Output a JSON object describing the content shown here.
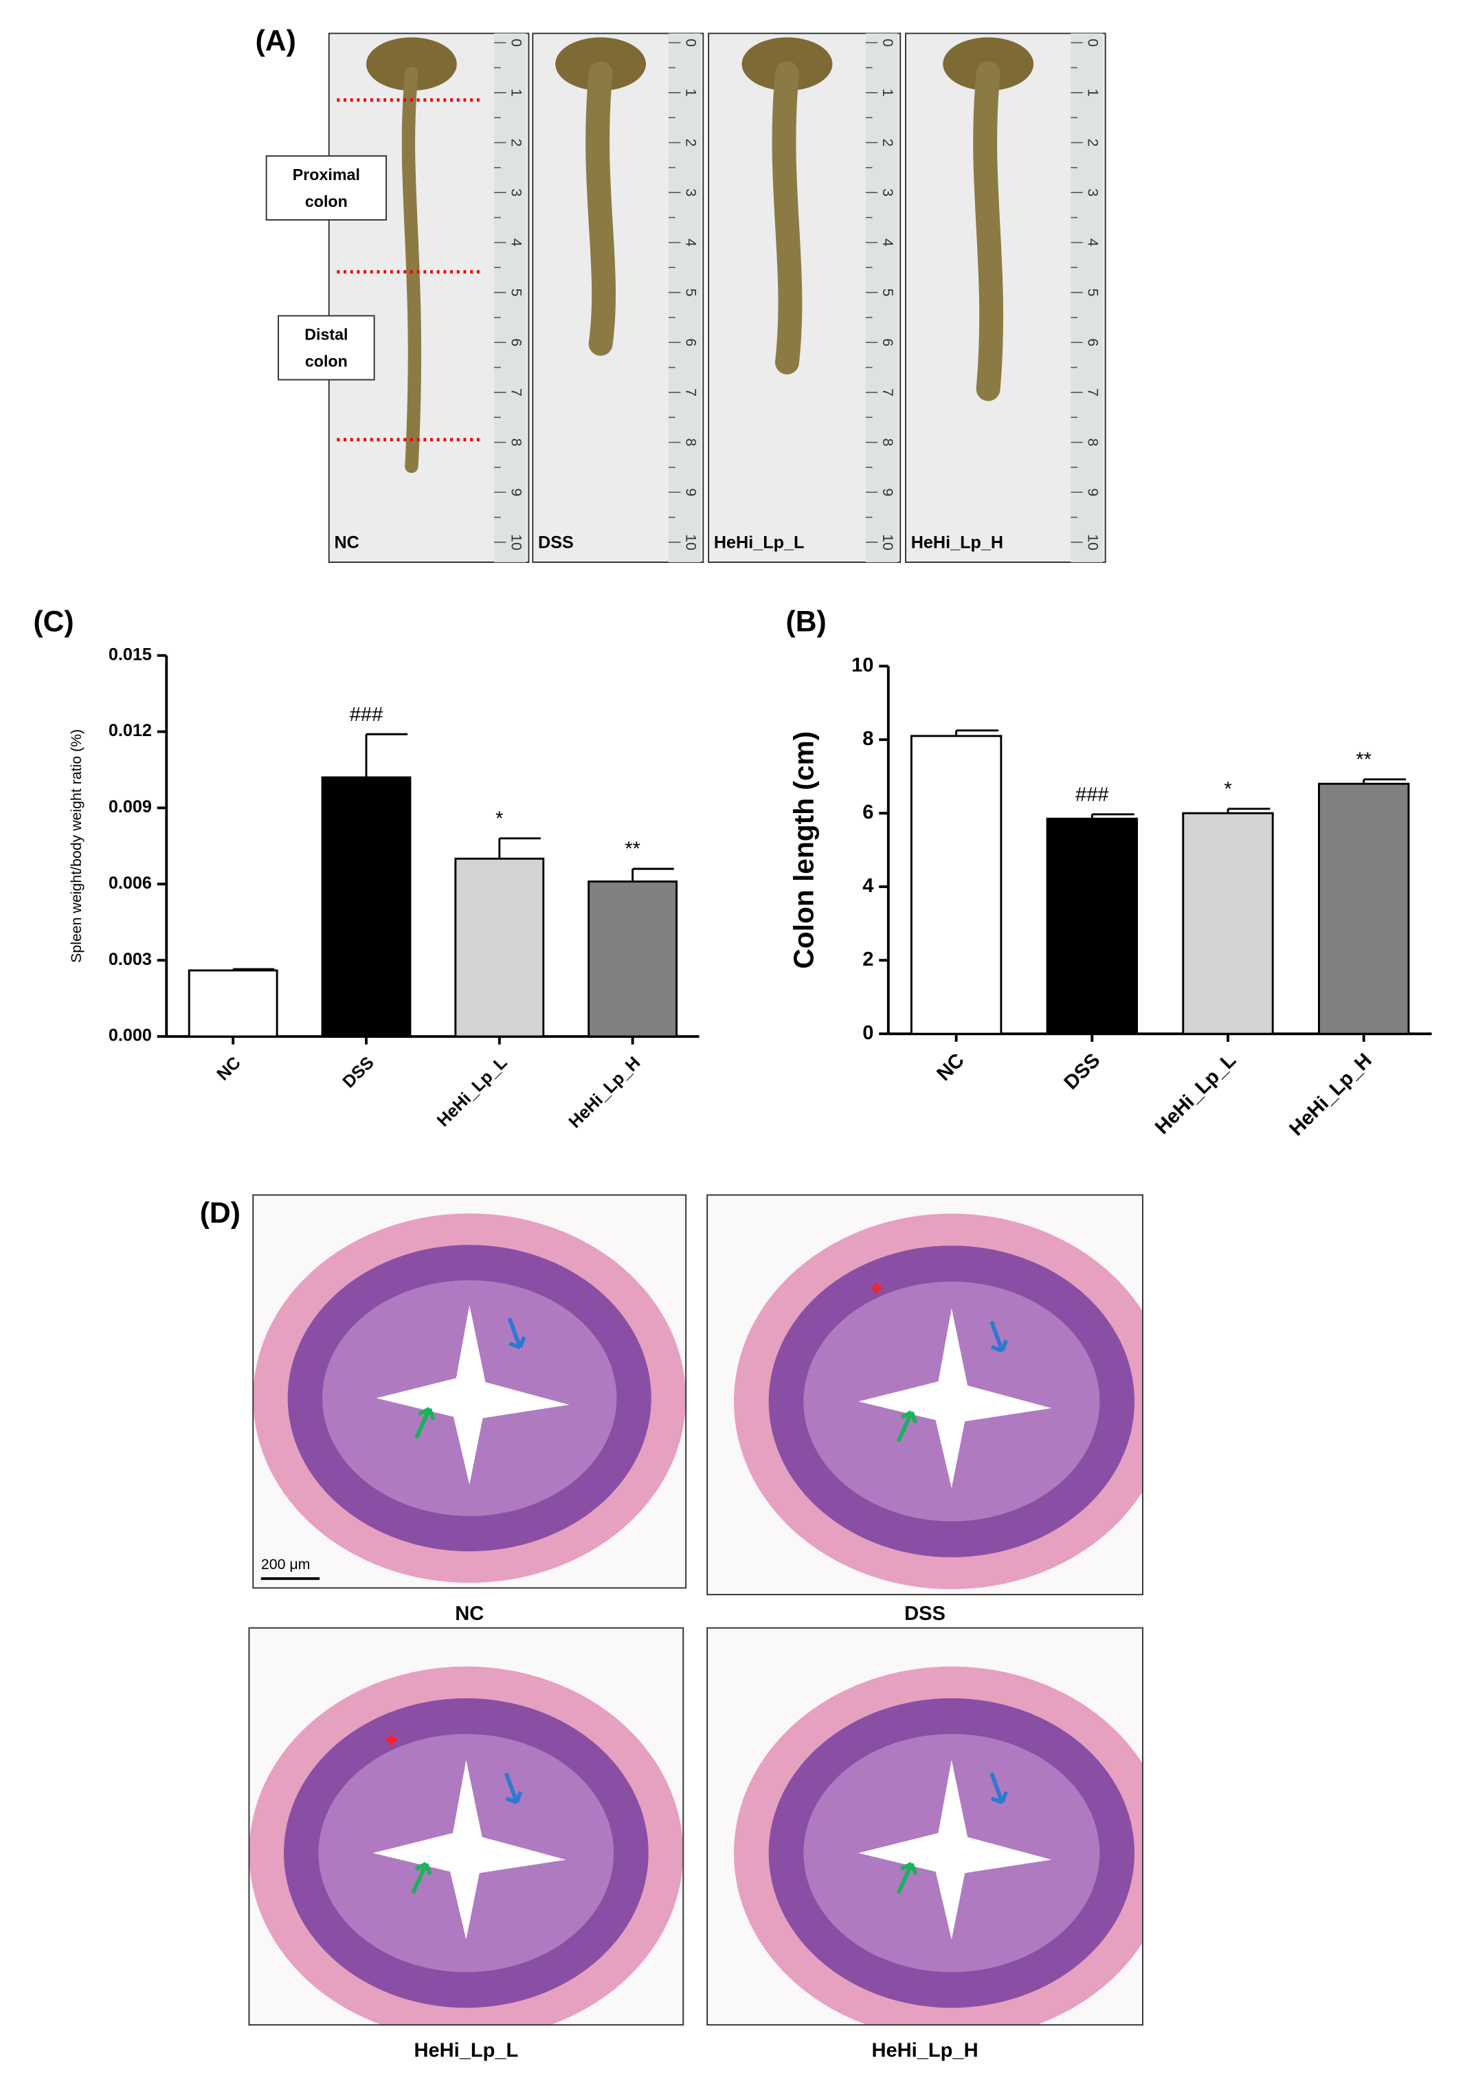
{
  "panel_a": {
    "label": "(A)",
    "photos": [
      "NC",
      "DSS",
      "HeHi_Lp_L",
      "HeHi_Lp_H"
    ],
    "regions": [
      [
        "Proximal",
        "colon"
      ],
      [
        "Distal",
        "colon"
      ]
    ],
    "ruler": [
      "0",
      "1",
      "2",
      "3",
      "4",
      "5",
      "6",
      "7",
      "8",
      "9",
      "10"
    ]
  },
  "chart_data": [
    {
      "type": "bar",
      "panel_label": "(C)",
      "y_label": "Spleen weight/body weight ratio (%)",
      "categories": [
        "NC",
        "DSS",
        "HeHi_Lp_L",
        "HeHi_Lp_H"
      ],
      "values": [
        0.0026,
        0.0102,
        0.007,
        0.0061
      ],
      "errors": [
        5e-05,
        0.0017,
        0.0008,
        0.0005
      ],
      "colors": [
        "#ffffff",
        "#000000",
        "#d3d3d3",
        "#808080"
      ],
      "annotations": [
        null,
        "###",
        "*",
        "**"
      ],
      "ylim": [
        0,
        0.015
      ],
      "yticks": [
        {
          "value": 0,
          "label": "0.000"
        },
        {
          "value": 0.003,
          "label": "0.003"
        },
        {
          "value": 0.006,
          "label": "0.006"
        },
        {
          "value": 0.009,
          "label": "0.009"
        },
        {
          "value": 0.012,
          "label": "0.012"
        },
        {
          "value": 0.015,
          "label": "0.015"
        }
      ]
    },
    {
      "type": "bar",
      "panel_label": "(B)",
      "y_label": "Colon length (cm)",
      "categories": [
        "NC",
        "DSS",
        "HeHi_Lp_L",
        "HeHi_Lp_H"
      ],
      "values": [
        8.1,
        5.85,
        6.0,
        6.8
      ],
      "errors": [
        0.15,
        0.12,
        0.12,
        0.12
      ],
      "colors": [
        "#ffffff",
        "#000000",
        "#d3d3d3",
        "#808080"
      ],
      "annotations": [
        null,
        "###",
        "*",
        "**"
      ],
      "ylim": [
        0,
        10
      ],
      "yticks": [
        0,
        2,
        4,
        6,
        8,
        10
      ]
    }
  ],
  "panel_d": {
    "label": "(D)",
    "images": [
      "NC",
      "DSS",
      "HeHi_Lp_L",
      "HeHi_Lp_H"
    ],
    "scale_bar": "200 μm"
  }
}
